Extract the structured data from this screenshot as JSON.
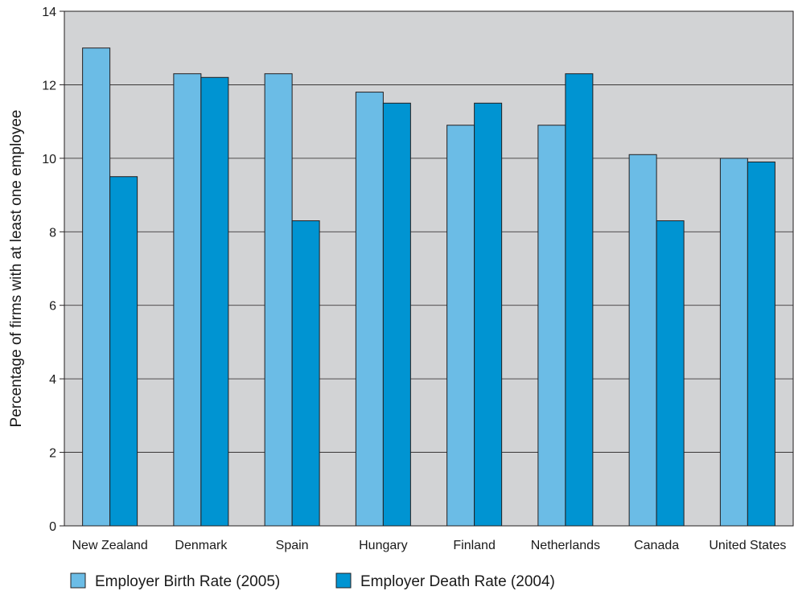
{
  "chart_data": {
    "type": "bar",
    "title": "",
    "xlabel": "",
    "ylabel": "Percentage of firms with at least one employee",
    "ylim": [
      0,
      14
    ],
    "yticks": [
      0,
      2,
      4,
      6,
      8,
      10,
      12,
      14
    ],
    "grid": true,
    "legend_position": "bottom-left",
    "categories": [
      "New Zealand",
      "Denmark",
      "Spain",
      "Hungary",
      "Finland",
      "Netherlands",
      "Canada",
      "United States"
    ],
    "series": [
      {
        "name": "Employer Birth Rate (2005)",
        "color": "#6bbce6",
        "values": [
          13.0,
          12.3,
          12.3,
          11.8,
          10.9,
          10.9,
          10.1,
          10.0
        ]
      },
      {
        "name": "Employer Death Rate (2004)",
        "color": "#0094d2",
        "values": [
          9.5,
          12.2,
          8.3,
          11.5,
          11.5,
          12.3,
          8.3,
          9.9
        ]
      }
    ],
    "plot_background": "#d2d3d5"
  }
}
